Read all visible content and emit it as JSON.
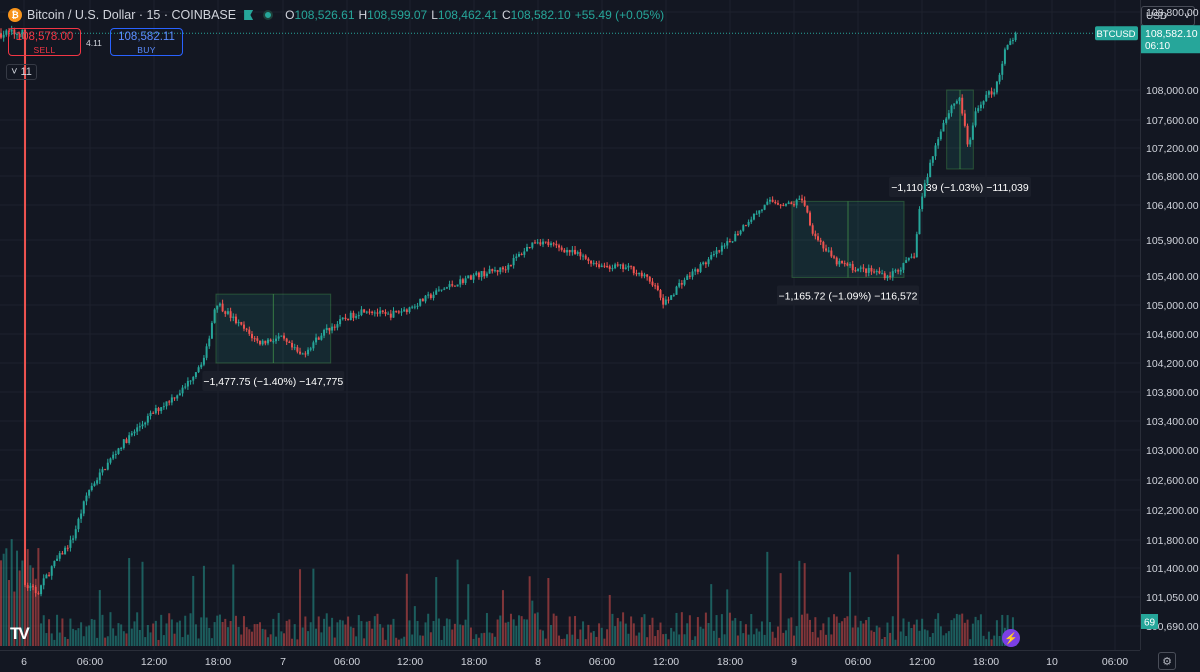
{
  "symbol": {
    "title": "Bitcoin / U.S. Dollar · 15 · COINBASE",
    "icon": "bitcoin-icon",
    "ohlc": {
      "o_label": "O",
      "o": "108,526.61",
      "h_label": "H",
      "h": "108,599.07",
      "l_label": "L",
      "l": "108,462.41",
      "c_label": "C",
      "c": "108,582.10",
      "change": "+55.49 (+0.05%)"
    }
  },
  "trade": {
    "sell_price": "108,578.00",
    "sell_label": "SELL",
    "spread": "4.11",
    "buy_price": "108,582.11",
    "buy_label": "BUY"
  },
  "indicators_toggle": {
    "chevron": "˅",
    "count": "11"
  },
  "currency_selector": {
    "value": "USD",
    "chevron": "˅"
  },
  "price_axis": {
    "labels": [
      "108,800.00",
      "108,000.00",
      "107,600.00",
      "107,200.00",
      "106,800.00",
      "106,400.00",
      "105,900.00",
      "105,400.00",
      "105,000.00",
      "104,600.00",
      "104,200.00",
      "103,800.00",
      "103,400.00",
      "103,000.00",
      "102,600.00",
      "102,200.00",
      "101,800.00",
      "101,400.00",
      "101,050.00",
      "100,690.00"
    ]
  },
  "last_price": {
    "symbol": "BTCUSD",
    "price": "108,582.10",
    "countdown": "06:10"
  },
  "volume_label": "69",
  "time_axis": {
    "labels": [
      "6",
      "06:00",
      "12:00",
      "18:00",
      "7",
      "06:00",
      "12:00",
      "18:00",
      "8",
      "06:00",
      "12:00",
      "18:00",
      "9",
      "06:00",
      "12:00",
      "18:00",
      "10",
      "06:00"
    ]
  },
  "colors": {
    "up": "#26a69a",
    "down": "#ef5350",
    "background": "#131722",
    "grid": "#1e222d",
    "sell": "#f23645",
    "buy": "#2962ff"
  },
  "logo": "TradingView",
  "chart_data": {
    "type": "candlestick",
    "interval": "15",
    "exchange": "COINBASE",
    "ylim": [
      100500,
      108900
    ],
    "axis_note": "price axis is non-linear (label spacing as printed)",
    "close_path": [
      {
        "t": "6 00:00",
        "price": 101200
      },
      {
        "t": "6 01:15",
        "price": 101100
      },
      {
        "t": "6 03:00",
        "price": 101500
      },
      {
        "t": "6 04:30",
        "price": 101800
      },
      {
        "t": "6 06:00",
        "price": 102450
      },
      {
        "t": "6 09:00",
        "price": 103050
      },
      {
        "t": "6 12:00",
        "price": 103500
      },
      {
        "t": "6 15:00",
        "price": 103850
      },
      {
        "t": "6 17:00",
        "price": 104300
      },
      {
        "t": "6 18:00",
        "price": 105050
      },
      {
        "t": "6 20:00",
        "price": 104750
      },
      {
        "t": "6 22:00",
        "price": 104480
      },
      {
        "t": "7 00:00",
        "price": 104550
      },
      {
        "t": "7 01:00",
        "price": 104420
      },
      {
        "t": "7 02:00",
        "price": 104300
      },
      {
        "t": "7 04:00",
        "price": 104620
      },
      {
        "t": "7 06:00",
        "price": 104800
      },
      {
        "t": "7 08:00",
        "price": 104950
      },
      {
        "t": "7 10:00",
        "price": 104850
      },
      {
        "t": "7 12:00",
        "price": 104950
      },
      {
        "t": "7 15:00",
        "price": 105200
      },
      {
        "t": "7 18:00",
        "price": 105400
      },
      {
        "t": "7 21:00",
        "price": 105500
      },
      {
        "t": "8 00:00",
        "price": 105900
      },
      {
        "t": "8 03:00",
        "price": 105750
      },
      {
        "t": "8 06:00",
        "price": 105550
      },
      {
        "t": "8 09:00",
        "price": 105500
      },
      {
        "t": "8 11:00",
        "price": 105300
      },
      {
        "t": "8 12:00",
        "price": 105000
      },
      {
        "t": "8 13:30",
        "price": 105300
      },
      {
        "t": "8 16:00",
        "price": 105600
      },
      {
        "t": "8 18:00",
        "price": 105850
      },
      {
        "t": "8 20:00",
        "price": 106200
      },
      {
        "t": "8 22:00",
        "price": 106450
      },
      {
        "t": "9 00:00",
        "price": 106400
      },
      {
        "t": "9 01:00",
        "price": 106500
      },
      {
        "t": "9 02:00",
        "price": 106000
      },
      {
        "t": "9 04:00",
        "price": 105600
      },
      {
        "t": "9 06:00",
        "price": 105500
      },
      {
        "t": "9 08:00",
        "price": 105450
      },
      {
        "t": "9 09:00",
        "price": 105400
      },
      {
        "t": "9 10:30",
        "price": 105550
      },
      {
        "t": "9 11:30",
        "price": 105700
      },
      {
        "t": "9 12:00",
        "price": 106400
      },
      {
        "t": "9 13:00",
        "price": 107000
      },
      {
        "t": "9 14:00",
        "price": 107500
      },
      {
        "t": "9 15:00",
        "price": 107800
      },
      {
        "t": "9 15:45",
        "price": 107900
      },
      {
        "t": "9 16:30",
        "price": 107200
      },
      {
        "t": "9 17:15",
        "price": 107700
      },
      {
        "t": "9 18:00",
        "price": 107900
      },
      {
        "t": "9 19:00",
        "price": 108000
      },
      {
        "t": "9 20:00",
        "price": 108400
      },
      {
        "t": "9 21:00",
        "price": 108582.1
      }
    ],
    "annotations": [
      {
        "label": "−1,477.75 (−1.40%) −147,775",
        "from": {
          "t": "6 18:00",
          "price": 105150
        },
        "to": {
          "t": "7 04:45",
          "price": 104200
        }
      },
      {
        "label": "−1,165.72 (−1.09%) −116,572",
        "from": {
          "t": "9 00:00",
          "price": 106450
        },
        "to": {
          "t": "9 10:30",
          "price": 105380
        }
      },
      {
        "label": "−1,110.39 (−1.03%) −111,039",
        "from": {
          "t": "9 14:30",
          "price": 108000
        },
        "to": {
          "t": "9 17:00",
          "price": 106900
        }
      }
    ],
    "volume": {
      "series": "volume",
      "last": 69
    },
    "last_price_line": 108582.1
  }
}
